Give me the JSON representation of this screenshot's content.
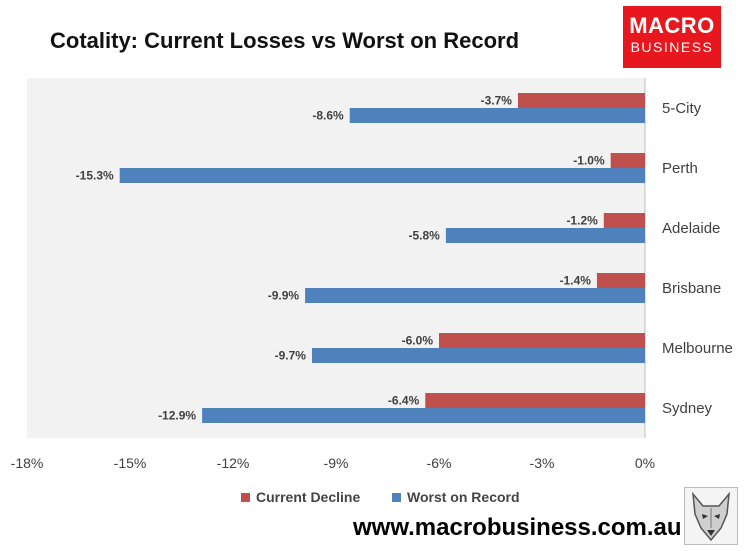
{
  "chart_data": {
    "type": "bar",
    "orientation": "horizontal",
    "title": "Cotality: Current Losses vs Worst on Record",
    "categories": [
      "5-City",
      "Perth",
      "Adelaide",
      "Brisbane",
      "Melbourne",
      "Sydney"
    ],
    "series": [
      {
        "name": "Current Decline",
        "values": [
          -3.7,
          -1.0,
          -1.2,
          -1.4,
          -6.0,
          -6.4
        ],
        "labels": [
          "-3.7%",
          "-1.0%",
          "-1.2%",
          "-1.4%",
          "-6.0%",
          "-6.4%"
        ],
        "color": "#c0504d"
      },
      {
        "name": "Worst on Record",
        "values": [
          -8.6,
          -15.3,
          -5.8,
          -9.9,
          -9.7,
          -12.9
        ],
        "labels": [
          "-8.6%",
          "-15.3%",
          "-5.8%",
          "-9.9%",
          "-9.7%",
          "-12.9%"
        ],
        "color": "#4f81bd"
      }
    ],
    "xlim": [
      -18,
      0
    ],
    "x_ticks": [
      "-18%",
      "-15%",
      "-12%",
      "-9%",
      "-6%",
      "-3%",
      "0%"
    ],
    "x_tick_values": [
      -18,
      -15,
      -12,
      -9,
      -6,
      -3,
      0
    ],
    "grid": false,
    "legend_position": "bottom",
    "plot_background": "#f2f2f2"
  },
  "logo": {
    "line1": "MACRO",
    "line2": "BUSINESS"
  },
  "website": "www.macrobusiness.com.au"
}
